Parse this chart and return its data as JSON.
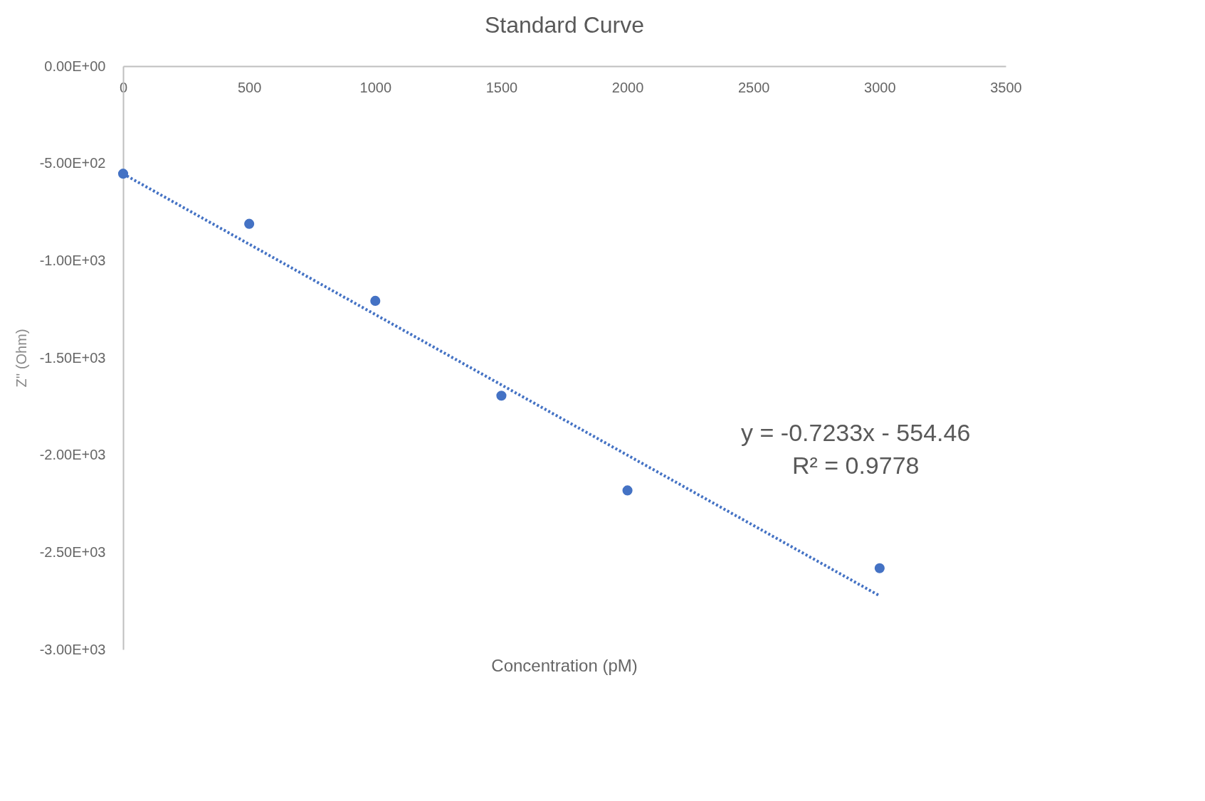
{
  "chart_data": {
    "type": "scatter",
    "title": "Standard Curve",
    "xlabel": "Concentration (pM)",
    "ylabel": "Z'' (Ohm)",
    "x": [
      0,
      500,
      1000,
      1500,
      2000,
      3000
    ],
    "series": [
      {
        "color": "#4472c4",
        "marker": "circle",
        "values": [
          -553,
          -811,
          -1207,
          -1695,
          -2182,
          -2582
        ]
      },
      {
        "type": "line",
        "color": "#4472c4",
        "line_style": "dotted",
        "x": [
          0,
          3000
        ],
        "values": [
          -554,
          -2724
        ]
      }
    ],
    "xlim": [
      0,
      3500
    ],
    "xticks": [
      0,
      500,
      1000,
      1500,
      2000,
      2500,
      3000,
      3500
    ],
    "ylim": [
      -3000,
      0
    ],
    "yticks": [
      {
        "value": 0,
        "label": "0.00E+00"
      },
      {
        "value": -500,
        "label": "-5.00E+02"
      },
      {
        "value": -1000,
        "label": "-1.00E+03"
      },
      {
        "value": -1500,
        "label": "-1.50E+03"
      },
      {
        "value": -2000,
        "label": "-2.00E+03"
      },
      {
        "value": -2500,
        "label": "-2.50E+03"
      },
      {
        "value": -3000,
        "label": "-3.00E+03"
      }
    ],
    "grid": false,
    "annotations": [
      "y = -0.7233x - 554.46",
      "R² = 0.9778"
    ]
  }
}
